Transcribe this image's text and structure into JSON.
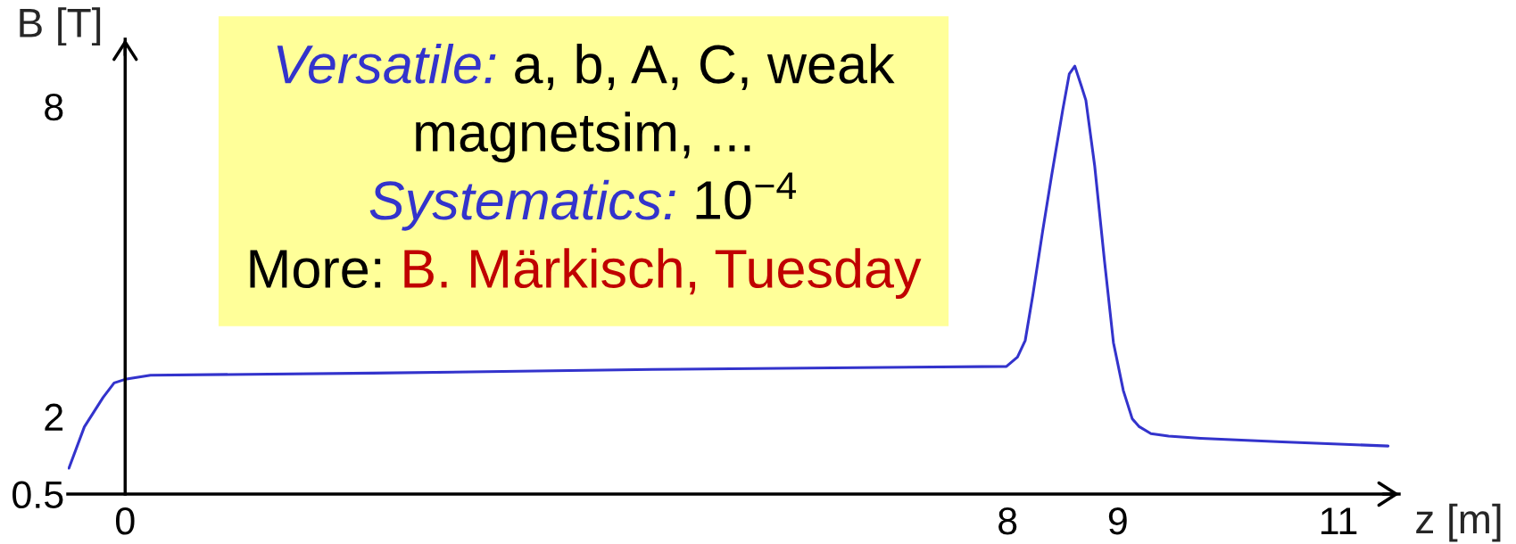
{
  "chart_data": {
    "type": "line",
    "xlabel": "z [m]",
    "ylabel": "B [T]",
    "x": [
      -0.51,
      -0.37,
      -0.2,
      -0.1,
      0,
      0.23,
      2.25,
      4.78,
      7.99,
      8.09,
      8.16,
      8.23,
      8.32,
      8.4,
      8.5,
      8.56,
      8.61,
      8.67,
      8.71,
      8.79,
      8.88,
      8.96,
      9.05,
      9.13,
      9.19,
      9.3,
      9.46,
      9.75,
      10.49,
      11.45
    ],
    "series": [
      {
        "color": "#3333cc",
        "values": [
          1.0,
          1.8,
          2.37,
          2.65,
          2.72,
          2.8,
          2.84,
          2.91,
          2.97,
          3.15,
          3.47,
          4.36,
          5.61,
          6.67,
          7.93,
          8.63,
          8.78,
          8.39,
          8.12,
          6.85,
          4.99,
          3.43,
          2.5,
          1.96,
          1.81,
          1.67,
          1.62,
          1.58,
          1.51,
          1.43
        ]
      }
    ],
    "xlim": [
      -0.52,
      11.55
    ],
    "xticks": [
      0,
      8,
      9,
      11
    ],
    "ylim": [
      0.5,
      9.3
    ],
    "yticks": [
      0.5,
      2,
      8
    ],
    "line_style": "solid",
    "annotations": [
      "Versatile:",
      "a, b, A, C, weak",
      "magnetsim, ...",
      "Systematics:",
      "10$^{−4}$",
      "More:",
      "B. Märkisch, Tuesday"
    ]
  }
}
